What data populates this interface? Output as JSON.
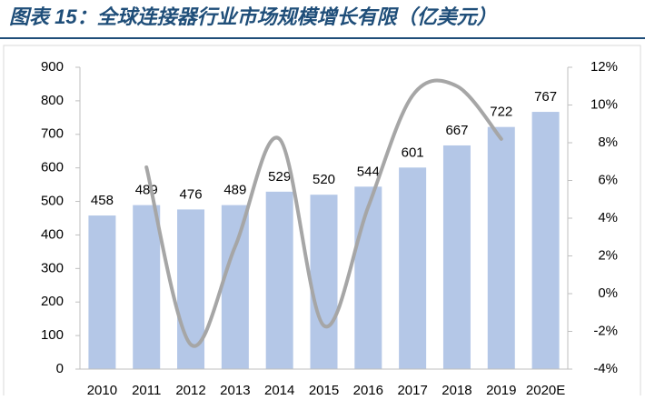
{
  "chart_data": {
    "type": "bar-line",
    "title": "图表 15：全球连接器行业市场规模增长有限（亿美元）",
    "categories": [
      "2010",
      "2011",
      "2012",
      "2013",
      "2014",
      "2015",
      "2016",
      "2017",
      "2018",
      "2019",
      "2020E"
    ],
    "series": [
      {
        "type": "bar",
        "color": "#b4c7e7",
        "values": [
          458,
          489,
          476,
          489,
          529,
          520,
          544,
          601,
          667,
          722,
          767
        ]
      },
      {
        "type": "line",
        "axis": "y2",
        "color": "#a6a6a6",
        "values": [
          null,
          6.7,
          -2.7,
          2.5,
          8.2,
          -1.7,
          4.6,
          10.5,
          11.0,
          8.2,
          null
        ]
      }
    ],
    "ylim": [
      0,
      900
    ],
    "yticks": [
      0,
      100,
      200,
      300,
      400,
      500,
      600,
      700,
      800,
      900
    ],
    "y2lim": [
      -4,
      12
    ],
    "y2ticks": [
      {
        "value": -4,
        "label": "-4%"
      },
      {
        "value": -2,
        "label": "-2%"
      },
      {
        "value": 0,
        "label": "0%"
      },
      {
        "value": 2,
        "label": "2%"
      },
      {
        "value": 4,
        "label": "4%"
      },
      {
        "value": 6,
        "label": "6%"
      },
      {
        "value": 8,
        "label": "8%"
      },
      {
        "value": 10,
        "label": "10%"
      },
      {
        "value": 12,
        "label": "12%"
      }
    ]
  }
}
